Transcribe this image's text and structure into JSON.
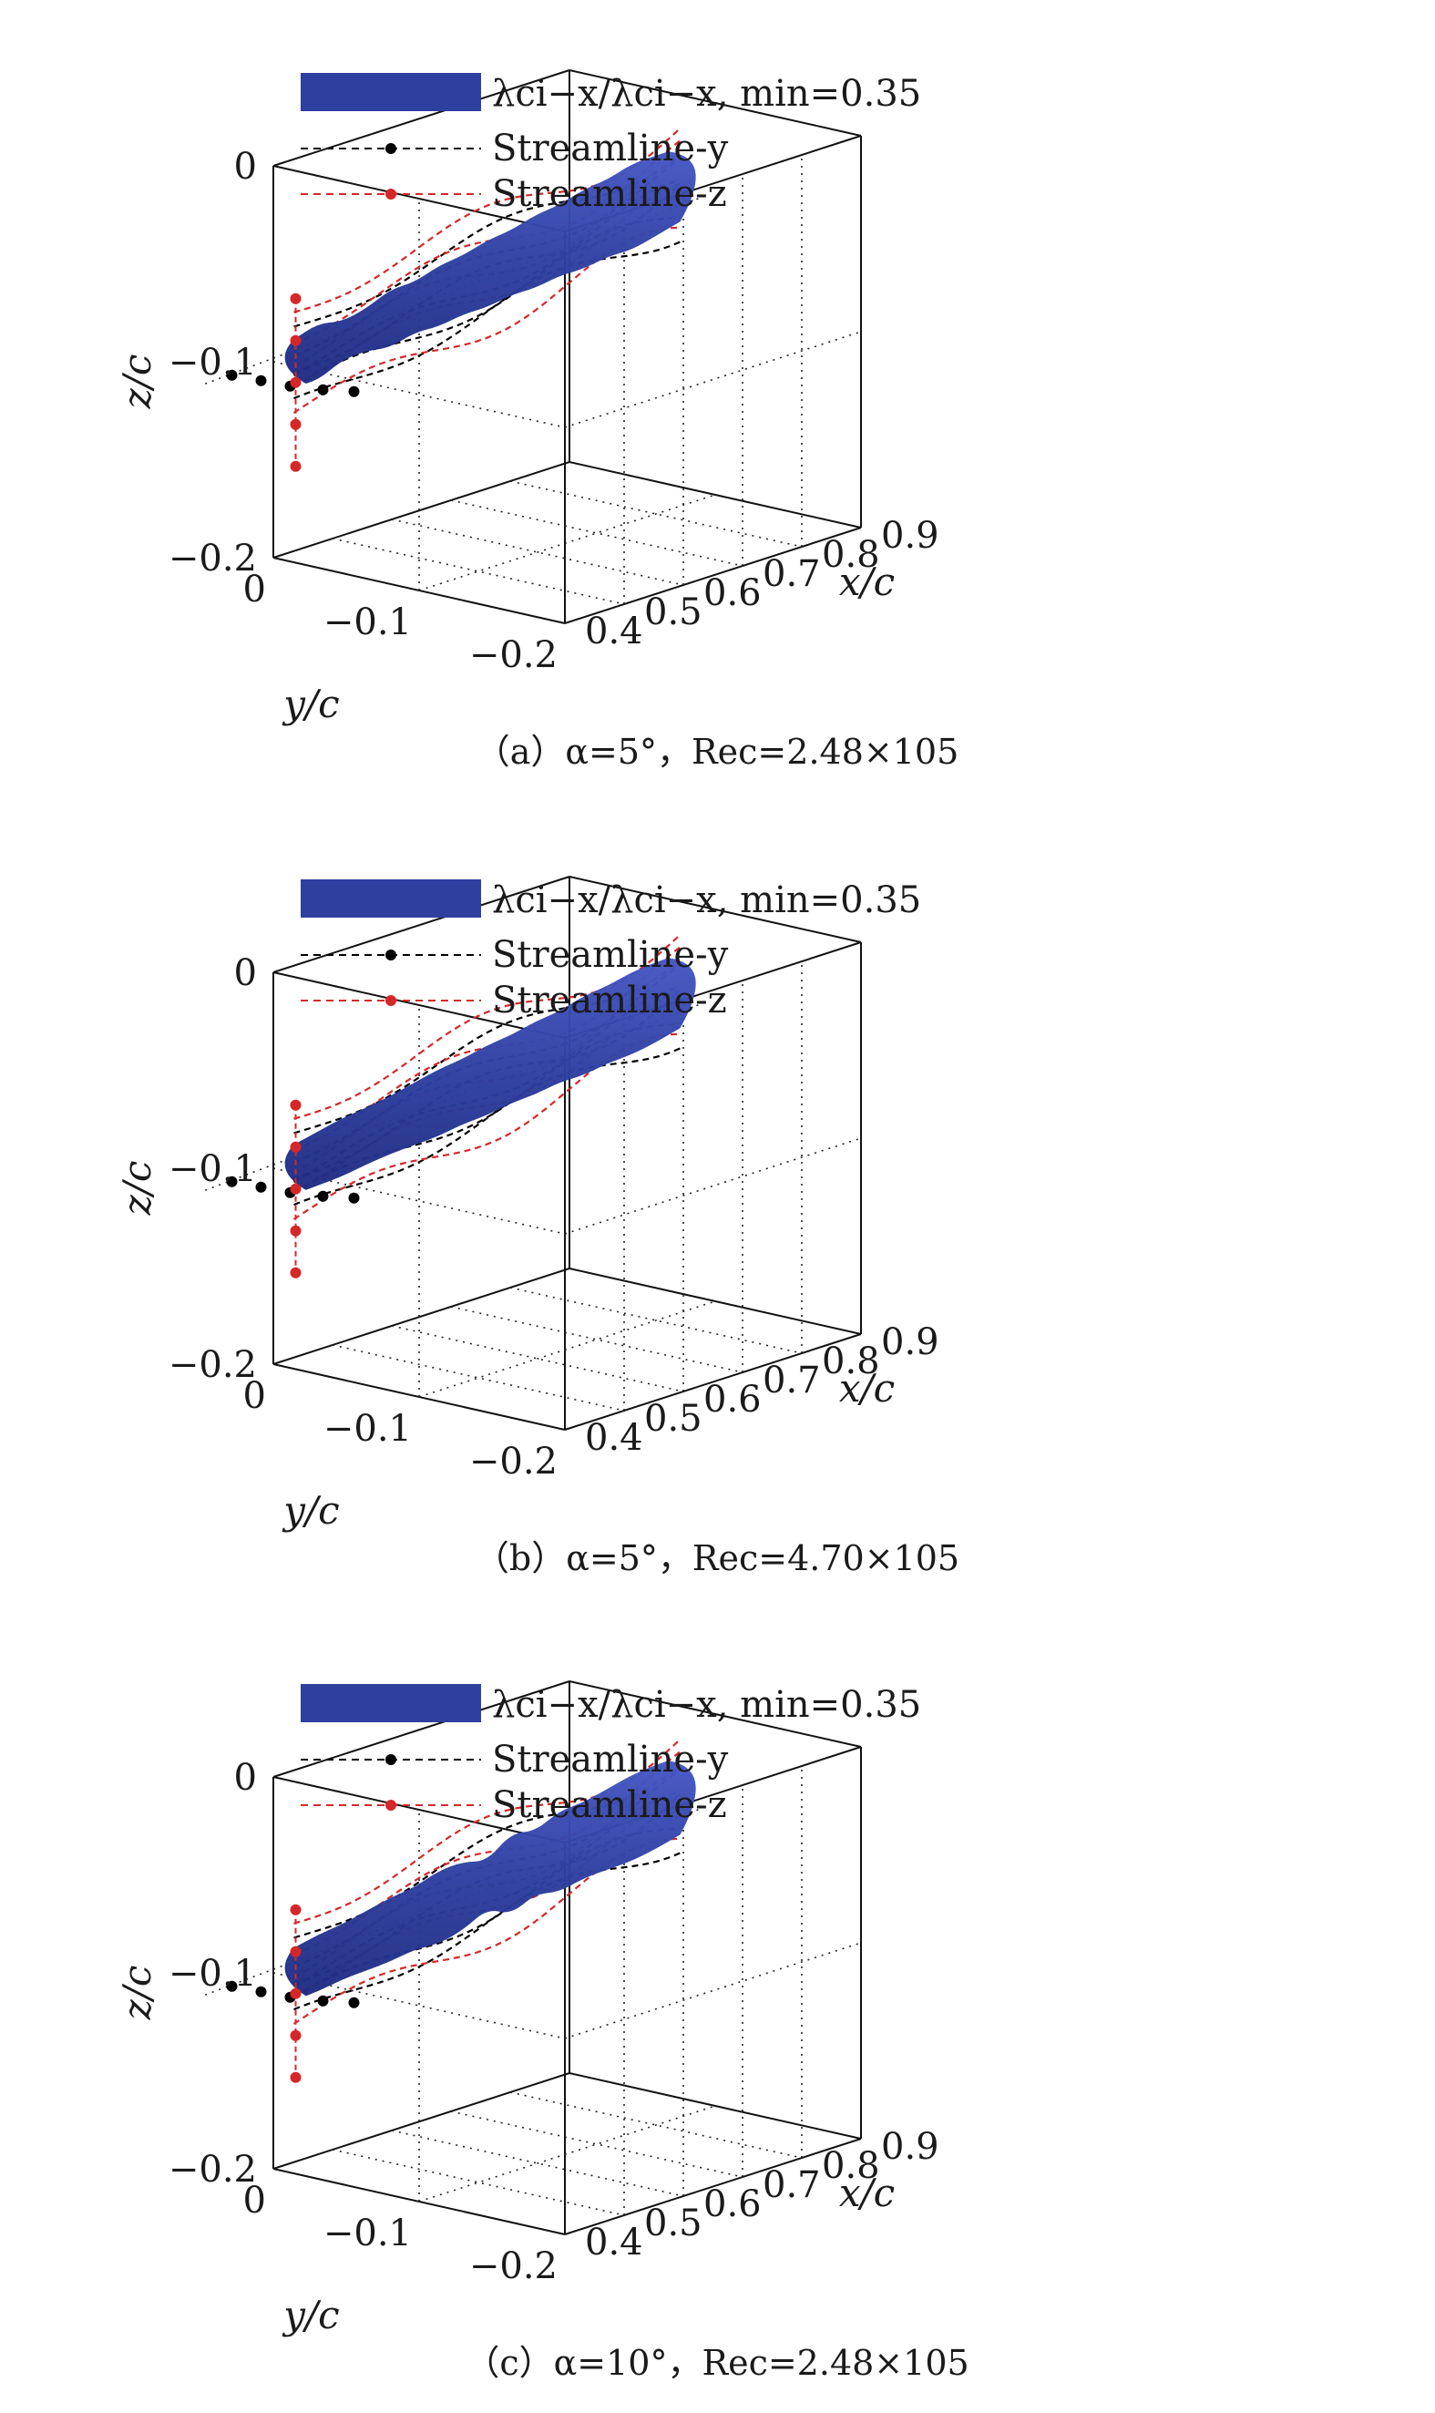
{
  "legend": {
    "isosurface_label": "λci−x/λci−x, min=0.35",
    "streamline_y_label": "Streamline-y",
    "streamline_z_label": "Streamline-z",
    "isosurface_color": "#2e3fa0",
    "streamline_y_color": "#000000",
    "streamline_z_color": "#d62728"
  },
  "chart_data": [
    {
      "type": "3d-isosurface",
      "caption": "（a）α=5°，Rec=2.48×105",
      "xlabel": "x/c",
      "ylabel": "y/c",
      "zlabel": "z/c",
      "xticks": [
        "0.4",
        "0.5",
        "0.6",
        "0.7",
        "0.8",
        "0.9"
      ],
      "yticks": [
        "0",
        "−0.1",
        "−0.2"
      ],
      "zticks": [
        "0",
        "−0.1",
        "−0.2"
      ],
      "xlim": [
        0.4,
        0.9
      ],
      "ylim": [
        -0.2,
        0
      ],
      "zlim": [
        -0.2,
        0
      ],
      "grid": true,
      "isosurface_threshold": 0.35,
      "vortex_core": {
        "x_start": 0.4,
        "x_end": 0.9,
        "z_center": -0.1
      }
    },
    {
      "type": "3d-isosurface",
      "caption": "（b）α=5°，Rec=4.70×105",
      "xlabel": "x/c",
      "ylabel": "y/c",
      "zlabel": "z/c",
      "xticks": [
        "0.4",
        "0.5",
        "0.6",
        "0.7",
        "0.8",
        "0.9"
      ],
      "yticks": [
        "0",
        "−0.1",
        "−0.2"
      ],
      "zticks": [
        "0",
        "−0.1",
        "−0.2"
      ],
      "xlim": [
        0.4,
        0.9
      ],
      "ylim": [
        -0.2,
        0
      ],
      "zlim": [
        -0.2,
        0
      ],
      "grid": true,
      "isosurface_threshold": 0.35,
      "vortex_core": {
        "x_start": 0.4,
        "x_end": 0.9,
        "z_center": -0.1
      }
    },
    {
      "type": "3d-isosurface",
      "caption": "（c）α=10°，Rec=2.48×105",
      "xlabel": "x/c",
      "ylabel": "y/c",
      "zlabel": "z/c",
      "xticks": [
        "0.4",
        "0.5",
        "0.6",
        "0.7",
        "0.8",
        "0.9"
      ],
      "yticks": [
        "0",
        "−0.1",
        "−0.2"
      ],
      "zticks": [
        "0",
        "−0.1",
        "−0.2"
      ],
      "xlim": [
        0.4,
        0.9
      ],
      "ylim": [
        -0.2,
        0
      ],
      "zlim": [
        -0.2,
        0
      ],
      "grid": true,
      "isosurface_threshold": 0.35,
      "vortex_core": {
        "x_start": 0.4,
        "x_end": 0.9,
        "z_center": -0.1
      }
    }
  ]
}
